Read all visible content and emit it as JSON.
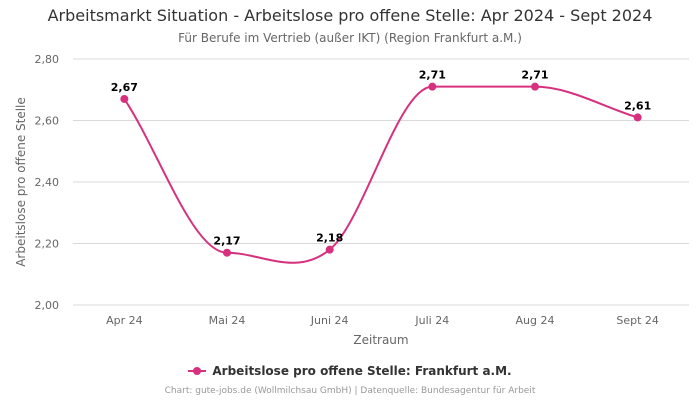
{
  "title": "Arbeitsmarkt Situation - Arbeitslose pro offene Stelle: Apr 2024 - Sept 2024",
  "subtitle": "Für Berufe im Vertrieb (außer IKT) (Region Frankfurt a.M.)",
  "credits": "Chart: gute-jobs.de (Wollmilchsau GmbH) | Datenquelle: Bundesagentur für Arbeit",
  "colors": {
    "series": "#d6307e",
    "grid": "#d9d9d9",
    "axis_text": "#666666"
  },
  "chart_data": {
    "type": "line",
    "categories": [
      "Apr 24",
      "Mai 24",
      "Juni 24",
      "Juli 24",
      "Aug 24",
      "Sept 24"
    ],
    "series": [
      {
        "name": "Arbeitslose pro offene Stelle: Frankfurt a.M.",
        "values": [
          2.67,
          2.17,
          2.18,
          2.71,
          2.71,
          2.61
        ],
        "labels": [
          "2,67",
          "2,17",
          "2,18",
          "2,71",
          "2,71",
          "2,61"
        ]
      }
    ],
    "xlabel": "Zeitraum",
    "ylabel": "Arbeitslose pro offene Stelle",
    "ylim": [
      2.0,
      2.8
    ],
    "yticks": [
      2.0,
      2.2,
      2.4,
      2.6,
      2.8
    ],
    "ytick_labels": [
      "2,00",
      "2,20",
      "2,40",
      "2,60",
      "2,80"
    ],
    "grid": true,
    "legend": "bottom-center"
  }
}
